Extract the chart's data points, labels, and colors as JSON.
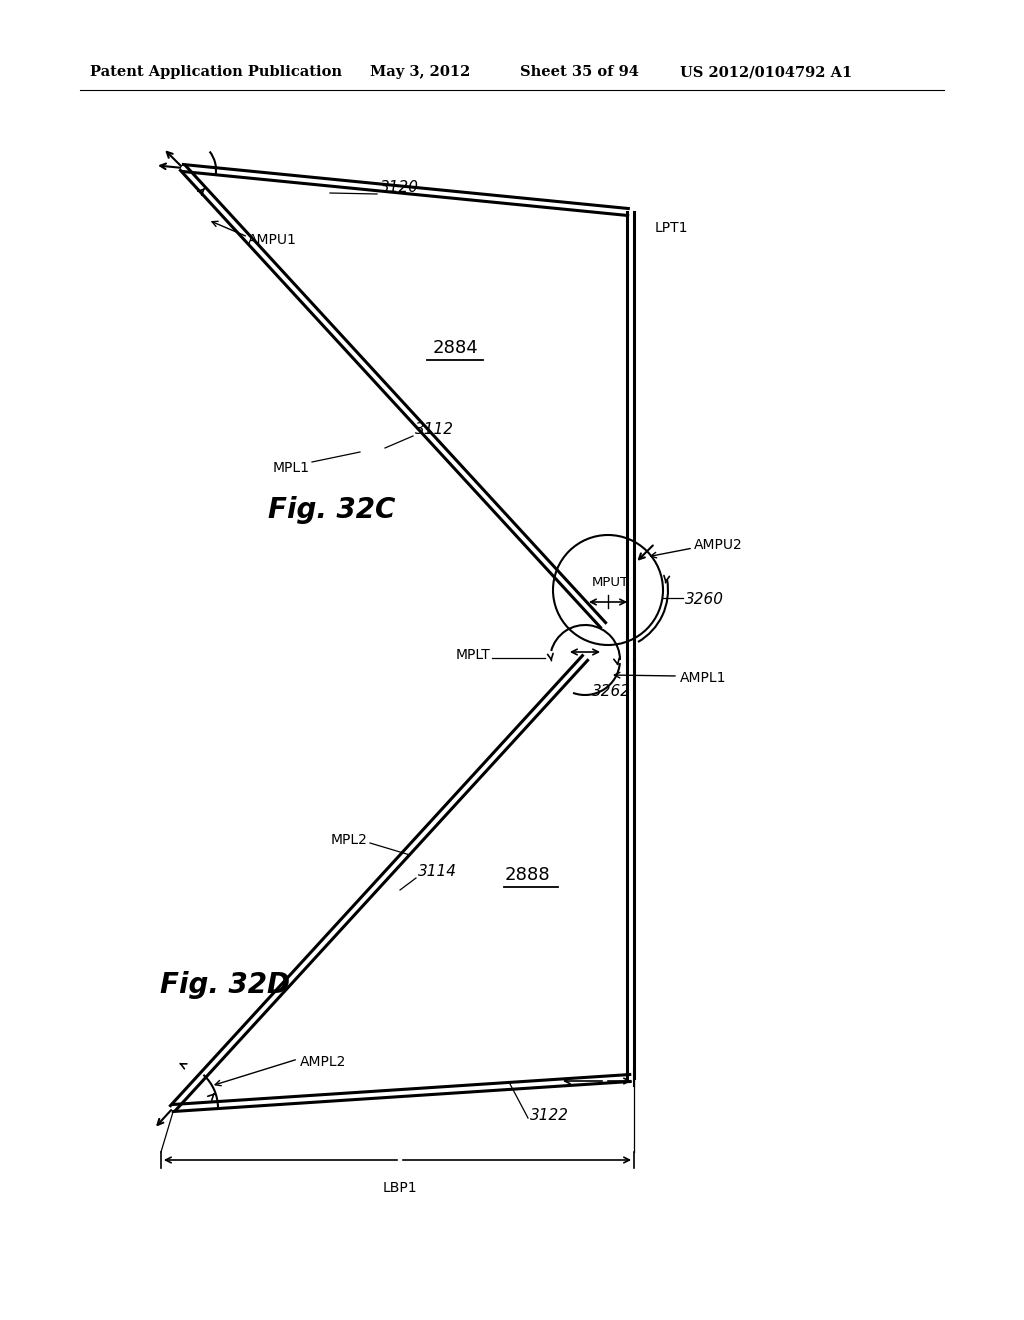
{
  "bg_color": "#ffffff",
  "header_text": "Patent Application Publication",
  "header_date": "May 3, 2012",
  "header_sheet": "Sheet 35 of 94",
  "header_patent": "US 2012/0104792 A1",
  "fig32c_label": "Fig. 32C",
  "fig32d_label": "Fig. 32D",
  "label_3120": "3120",
  "label_3122": "3122",
  "label_3112": "3112",
  "label_3114": "3114",
  "label_2884": "2884",
  "label_2888": "2888",
  "label_3260": "3260",
  "label_3262": "3262",
  "label_AMPU1": "AMPU1",
  "label_AMPU2": "AMPU2",
  "label_AMPL1": "AMPL1",
  "label_AMPL2": "AMPL2",
  "label_LPT1": "LPT1",
  "label_LBP1": "LBP1",
  "label_MPL1": "MPL1",
  "label_MPL2": "MPL2",
  "label_MPUT": "MPUT",
  "label_MPLT": "MPLT"
}
